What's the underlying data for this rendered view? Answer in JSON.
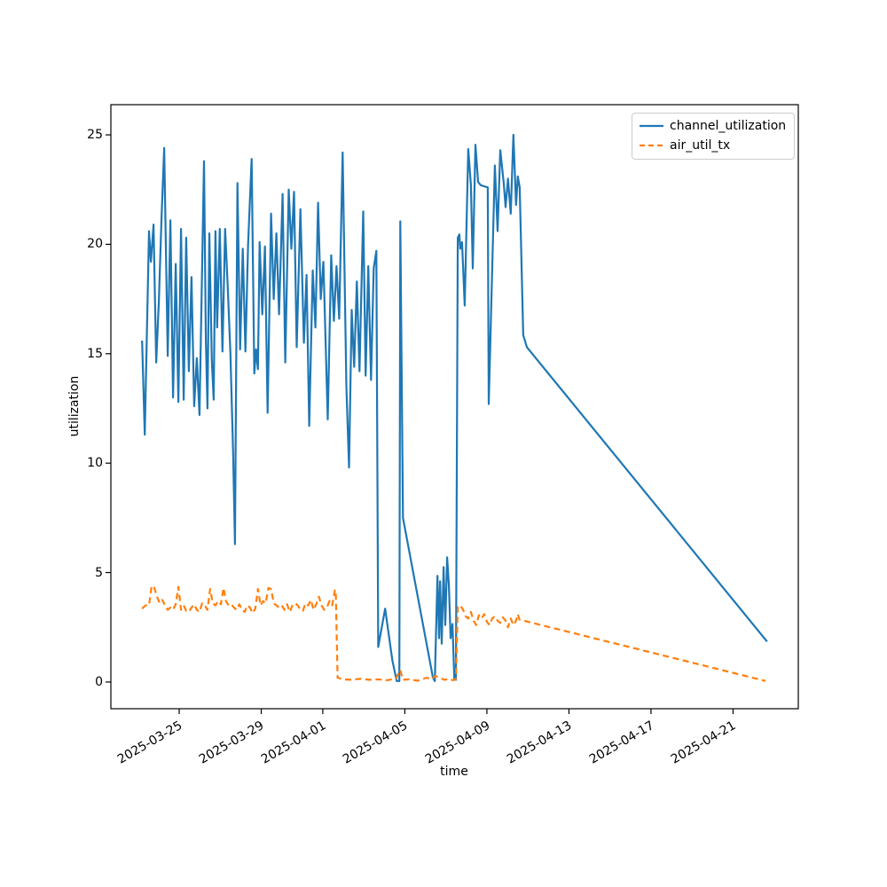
{
  "chart_data": {
    "type": "line",
    "title": "",
    "xlabel": "time",
    "ylabel": "utilization",
    "grid": false,
    "x_unit": "days since 2025-03-25 00:00",
    "xlim": [
      -3.33,
      30.18
    ],
    "ylim": [
      -1.22,
      26.38
    ],
    "x_ticks": [
      {
        "day": 0,
        "label": "2025-03-25"
      },
      {
        "day": 4,
        "label": "2025-03-29"
      },
      {
        "day": 7,
        "label": "2025-04-01"
      },
      {
        "day": 11,
        "label": "2025-04-05"
      },
      {
        "day": 15,
        "label": "2025-04-09"
      },
      {
        "day": 19,
        "label": "2025-04-13"
      },
      {
        "day": 23,
        "label": "2025-04-17"
      },
      {
        "day": 27,
        "label": "2025-04-21"
      }
    ],
    "y_ticks": [
      0,
      5,
      10,
      15,
      20,
      25
    ],
    "legend": {
      "position": "upper right",
      "entries": [
        {
          "label": "channel_utilization",
          "color": "#1f77b4",
          "line_style": "solid"
        },
        {
          "label": "air_util_tx",
          "color": "#ff7f0e",
          "line_style": "dashed"
        }
      ]
    },
    "series": [
      {
        "name": "channel_utilization",
        "color": "#1f77b4",
        "line_style": "solid",
        "points": [
          [
            -1.81,
            15.6
          ],
          [
            -1.68,
            11.3
          ],
          [
            -1.47,
            20.6
          ],
          [
            -1.38,
            19.2
          ],
          [
            -1.25,
            20.9
          ],
          [
            -1.12,
            14.6
          ],
          [
            -0.99,
            17.4
          ],
          [
            -0.86,
            21.2
          ],
          [
            -0.73,
            24.4
          ],
          [
            -0.56,
            14.9
          ],
          [
            -0.43,
            21.1
          ],
          [
            -0.3,
            13.0
          ],
          [
            -0.17,
            19.1
          ],
          [
            -0.04,
            12.8
          ],
          [
            0.09,
            20.7
          ],
          [
            0.22,
            12.9
          ],
          [
            0.34,
            20.3
          ],
          [
            0.47,
            14.2
          ],
          [
            0.6,
            18.5
          ],
          [
            0.73,
            12.6
          ],
          [
            0.86,
            14.8
          ],
          [
            0.99,
            12.2
          ],
          [
            1.12,
            19.0
          ],
          [
            1.21,
            23.8
          ],
          [
            1.3,
            15.6
          ],
          [
            1.38,
            12.5
          ],
          [
            1.47,
            20.5
          ],
          [
            1.59,
            14.7
          ],
          [
            1.68,
            12.9
          ],
          [
            1.77,
            20.6
          ],
          [
            1.85,
            16.2
          ],
          [
            1.98,
            20.7
          ],
          [
            2.11,
            15.1
          ],
          [
            2.24,
            20.7
          ],
          [
            2.37,
            18.0
          ],
          [
            2.5,
            15.0
          ],
          [
            2.63,
            10.5
          ],
          [
            2.72,
            6.3
          ],
          [
            2.84,
            22.8
          ],
          [
            2.97,
            15.2
          ],
          [
            3.1,
            19.8
          ],
          [
            3.23,
            15.1
          ],
          [
            3.36,
            20.0
          ],
          [
            3.53,
            23.9
          ],
          [
            3.66,
            14.1
          ],
          [
            3.75,
            15.2
          ],
          [
            3.84,
            14.3
          ],
          [
            3.92,
            20.1
          ],
          [
            4.05,
            16.8
          ],
          [
            4.18,
            19.9
          ],
          [
            4.31,
            12.3
          ],
          [
            4.48,
            21.4
          ],
          [
            4.61,
            17.5
          ],
          [
            4.74,
            20.5
          ],
          [
            4.87,
            16.8
          ],
          [
            5.04,
            22.3
          ],
          [
            5.17,
            14.6
          ],
          [
            5.34,
            22.5
          ],
          [
            5.47,
            19.8
          ],
          [
            5.6,
            22.4
          ],
          [
            5.73,
            15.3
          ],
          [
            5.91,
            21.6
          ],
          [
            6.08,
            15.5
          ],
          [
            6.21,
            18.6
          ],
          [
            6.34,
            11.7
          ],
          [
            6.51,
            18.8
          ],
          [
            6.64,
            16.2
          ],
          [
            6.77,
            21.9
          ],
          [
            6.9,
            17.5
          ],
          [
            7.03,
            19.2
          ],
          [
            7.24,
            12.0
          ],
          [
            7.41,
            19.5
          ],
          [
            7.54,
            16.5
          ],
          [
            7.67,
            19.0
          ],
          [
            7.8,
            16.6
          ],
          [
            7.97,
            24.2
          ],
          [
            8.15,
            13.5
          ],
          [
            8.28,
            9.8
          ],
          [
            8.41,
            17.0
          ],
          [
            8.53,
            14.4
          ],
          [
            8.66,
            18.3
          ],
          [
            8.79,
            14.2
          ],
          [
            8.97,
            21.5
          ],
          [
            9.09,
            14.0
          ],
          [
            9.22,
            19.0
          ],
          [
            9.35,
            13.8
          ],
          [
            9.48,
            18.9
          ],
          [
            9.61,
            19.7
          ],
          [
            9.7,
            1.6
          ],
          [
            10.04,
            3.35
          ],
          [
            10.39,
            1.0
          ],
          [
            10.6,
            0.05
          ],
          [
            10.73,
            0.04
          ],
          [
            10.78,
            21.05
          ],
          [
            10.91,
            7.5
          ],
          [
            12.37,
            0.2
          ],
          [
            12.46,
            0.04
          ],
          [
            12.59,
            4.85
          ],
          [
            12.67,
            2.0
          ],
          [
            12.72,
            4.6
          ],
          [
            12.8,
            1.75
          ],
          [
            12.89,
            5.25
          ],
          [
            12.97,
            2.6
          ],
          [
            13.06,
            5.7
          ],
          [
            13.15,
            4.4
          ],
          [
            13.23,
            2.0
          ],
          [
            13.32,
            2.65
          ],
          [
            13.41,
            0.15
          ],
          [
            13.49,
            0.1
          ],
          [
            13.58,
            20.3
          ],
          [
            13.66,
            20.45
          ],
          [
            13.7,
            19.8
          ],
          [
            13.79,
            20.1
          ],
          [
            13.92,
            17.2
          ],
          [
            14.09,
            24.35
          ],
          [
            14.22,
            22.7
          ],
          [
            14.31,
            18.9
          ],
          [
            14.44,
            24.55
          ],
          [
            14.57,
            22.85
          ],
          [
            14.7,
            22.7
          ],
          [
            15.04,
            22.6
          ],
          [
            15.09,
            12.7
          ],
          [
            15.39,
            23.6
          ],
          [
            15.52,
            20.6
          ],
          [
            15.65,
            24.3
          ],
          [
            15.82,
            22.8
          ],
          [
            15.91,
            21.7
          ],
          [
            16.03,
            23.0
          ],
          [
            16.16,
            21.4
          ],
          [
            16.29,
            25.0
          ],
          [
            16.42,
            21.8
          ],
          [
            16.51,
            23.1
          ],
          [
            16.6,
            22.6
          ],
          [
            16.77,
            15.85
          ],
          [
            16.95,
            15.3
          ],
          [
            28.66,
            1.85
          ]
        ]
      },
      {
        "name": "air_util_tx",
        "color": "#ff7f0e",
        "line_style": "dashed",
        "points": [
          [
            -1.81,
            3.35
          ],
          [
            -1.64,
            3.5
          ],
          [
            -1.47,
            3.5
          ],
          [
            -1.34,
            4.4
          ],
          [
            -1.21,
            4.3
          ],
          [
            -1.08,
            3.9
          ],
          [
            -0.95,
            3.6
          ],
          [
            -0.82,
            3.75
          ],
          [
            -0.69,
            3.5
          ],
          [
            -0.56,
            3.3
          ],
          [
            -0.43,
            3.4
          ],
          [
            -0.3,
            3.3
          ],
          [
            -0.17,
            3.55
          ],
          [
            -0.04,
            4.35
          ],
          [
            0.09,
            3.3
          ],
          [
            0.22,
            3.5
          ],
          [
            0.34,
            3.25
          ],
          [
            0.47,
            3.2
          ],
          [
            0.6,
            3.4
          ],
          [
            0.73,
            3.55
          ],
          [
            0.86,
            3.3
          ],
          [
            0.99,
            3.2
          ],
          [
            1.12,
            3.6
          ],
          [
            1.25,
            3.5
          ],
          [
            1.38,
            3.3
          ],
          [
            1.51,
            4.25
          ],
          [
            1.64,
            3.6
          ],
          [
            1.77,
            3.5
          ],
          [
            1.9,
            3.7
          ],
          [
            2.03,
            3.55
          ],
          [
            2.16,
            4.3
          ],
          [
            2.28,
            3.7
          ],
          [
            2.41,
            3.5
          ],
          [
            2.54,
            3.55
          ],
          [
            2.67,
            3.4
          ],
          [
            2.8,
            3.3
          ],
          [
            2.93,
            3.55
          ],
          [
            3.06,
            3.3
          ],
          [
            3.19,
            3.2
          ],
          [
            3.32,
            3.5
          ],
          [
            3.45,
            3.4
          ],
          [
            3.58,
            3.15
          ],
          [
            3.71,
            3.35
          ],
          [
            3.84,
            4.25
          ],
          [
            3.97,
            3.5
          ],
          [
            4.09,
            3.7
          ],
          [
            4.22,
            3.6
          ],
          [
            4.35,
            4.3
          ],
          [
            4.48,
            4.25
          ],
          [
            4.61,
            3.6
          ],
          [
            4.74,
            3.5
          ],
          [
            4.87,
            3.4
          ],
          [
            5.0,
            3.5
          ],
          [
            5.13,
            3.3
          ],
          [
            5.26,
            3.55
          ],
          [
            5.39,
            3.2
          ],
          [
            5.52,
            3.5
          ],
          [
            5.65,
            3.6
          ],
          [
            5.78,
            3.5
          ],
          [
            5.91,
            3.3
          ],
          [
            6.03,
            3.25
          ],
          [
            6.16,
            3.6
          ],
          [
            6.29,
            3.5
          ],
          [
            6.42,
            3.75
          ],
          [
            6.55,
            3.3
          ],
          [
            6.68,
            3.55
          ],
          [
            6.81,
            3.9
          ],
          [
            6.94,
            3.5
          ],
          [
            7.07,
            3.3
          ],
          [
            7.2,
            3.4
          ],
          [
            7.33,
            3.7
          ],
          [
            7.46,
            3.5
          ],
          [
            7.59,
            4.2
          ],
          [
            7.63,
            4.2
          ],
          [
            7.72,
            0.2
          ],
          [
            7.97,
            0.12
          ],
          [
            8.41,
            0.1
          ],
          [
            8.84,
            0.15
          ],
          [
            9.27,
            0.1
          ],
          [
            9.7,
            0.12
          ],
          [
            10.13,
            0.08
          ],
          [
            10.56,
            0.15
          ],
          [
            10.78,
            0.55
          ],
          [
            10.91,
            0.1
          ],
          [
            11.21,
            0.12
          ],
          [
            11.64,
            0.06
          ],
          [
            12.07,
            0.2
          ],
          [
            12.28,
            0.12
          ],
          [
            12.5,
            0.28
          ],
          [
            12.72,
            0.18
          ],
          [
            12.93,
            0.1
          ],
          [
            13.15,
            0.14
          ],
          [
            13.36,
            0.08
          ],
          [
            13.49,
            0.15
          ],
          [
            13.58,
            3.45
          ],
          [
            13.71,
            3.5
          ],
          [
            13.84,
            3.3
          ],
          [
            13.97,
            3.0
          ],
          [
            14.09,
            2.9
          ],
          [
            14.22,
            3.2
          ],
          [
            14.35,
            2.8
          ],
          [
            14.48,
            2.6
          ],
          [
            14.61,
            3.05
          ],
          [
            14.74,
            2.9
          ],
          [
            14.87,
            3.1
          ],
          [
            15.0,
            2.75
          ],
          [
            15.13,
            2.6
          ],
          [
            15.26,
            2.9
          ],
          [
            15.39,
            3.0
          ],
          [
            15.52,
            2.8
          ],
          [
            15.65,
            2.7
          ],
          [
            15.78,
            2.95
          ],
          [
            15.91,
            2.8
          ],
          [
            16.03,
            2.5
          ],
          [
            16.16,
            2.9
          ],
          [
            16.29,
            2.6
          ],
          [
            16.42,
            2.8
          ],
          [
            16.51,
            3.1
          ],
          [
            16.59,
            2.85
          ],
          [
            28.58,
            0.05
          ]
        ]
      }
    ]
  }
}
